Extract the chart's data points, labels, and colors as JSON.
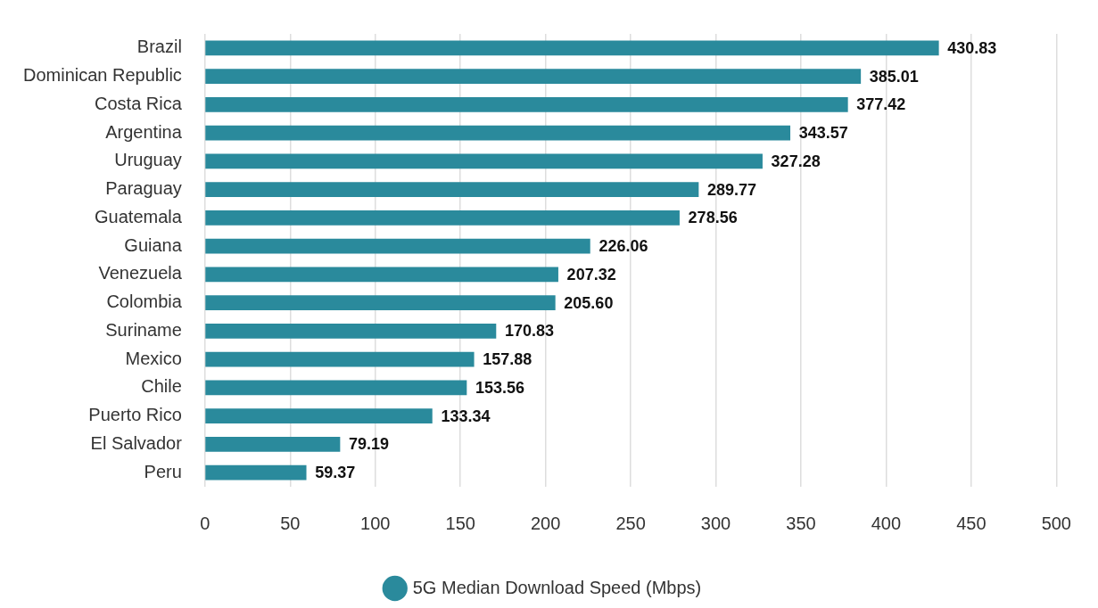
{
  "chart_data": {
    "type": "bar",
    "orientation": "horizontal",
    "categories": [
      "Brazil",
      "Dominican Republic",
      "Costa Rica",
      "Argentina",
      "Uruguay",
      "Paraguay",
      "Guatemala",
      "Guiana",
      "Venezuela",
      "Colombia",
      "Suriname",
      "Mexico",
      "Chile",
      "Puerto Rico",
      "El Salvador",
      "Peru"
    ],
    "series": [
      {
        "name": "5G Median Download Speed (Mbps)",
        "color": "#2a8a9c",
        "values": [
          430.83,
          385.01,
          377.42,
          343.57,
          327.28,
          289.77,
          278.56,
          226.06,
          207.32,
          205.6,
          170.83,
          157.88,
          153.56,
          133.34,
          79.19,
          59.37
        ],
        "value_labels": [
          "430.83",
          "385.01",
          "377.42",
          "343.57",
          "327.28",
          "289.77",
          "278.56",
          "226.06",
          "207.32",
          "205.60",
          "170.83",
          "157.88",
          "153.56",
          "133.34",
          "79.19",
          "59.37"
        ]
      }
    ],
    "xlim": [
      0,
      500
    ],
    "xticks": [
      0,
      50,
      100,
      150,
      200,
      250,
      300,
      350,
      400,
      450,
      500
    ],
    "grid": "x",
    "legend": "bottom"
  }
}
